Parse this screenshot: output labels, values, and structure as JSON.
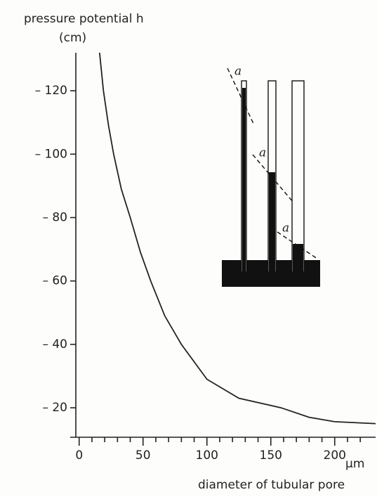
{
  "chart_data": {
    "type": "line",
    "ylabel": "pressure potential h",
    "yunit": "(cm)",
    "xlabel": "diameter of tubular pore",
    "xunit": "µm",
    "x": [
      16,
      19,
      23,
      27,
      33,
      40,
      48,
      56,
      67,
      80,
      100,
      125,
      158,
      180,
      200,
      232
    ],
    "values": [
      -132,
      -120,
      -109,
      -100,
      -89,
      -80,
      -69,
      -60,
      -49,
      -40,
      -29,
      -23,
      -20,
      -17,
      -15.6,
      -15
    ],
    "color": "#222222",
    "xlim": [
      -7,
      232
    ],
    "ylim": [
      -10.7,
      -132
    ],
    "xticks": [
      0,
      50,
      100,
      150,
      200
    ],
    "x_minor_ticks": [
      10,
      20,
      30,
      40,
      60,
      70,
      80,
      90,
      110,
      120,
      130,
      140,
      160,
      170,
      180,
      190,
      210,
      220
    ],
    "yticks": [
      {
        "value": -20,
        "label": "– 20"
      },
      {
        "value": -40,
        "label": "– 40"
      },
      {
        "value": -60,
        "label": "– 60"
      },
      {
        "value": -80,
        "label": "– 80"
      },
      {
        "value": -100,
        "label": "– 100"
      },
      {
        "value": -120,
        "label": "– 120"
      }
    ],
    "inset_labels": [
      "a",
      "a",
      "a"
    ]
  }
}
